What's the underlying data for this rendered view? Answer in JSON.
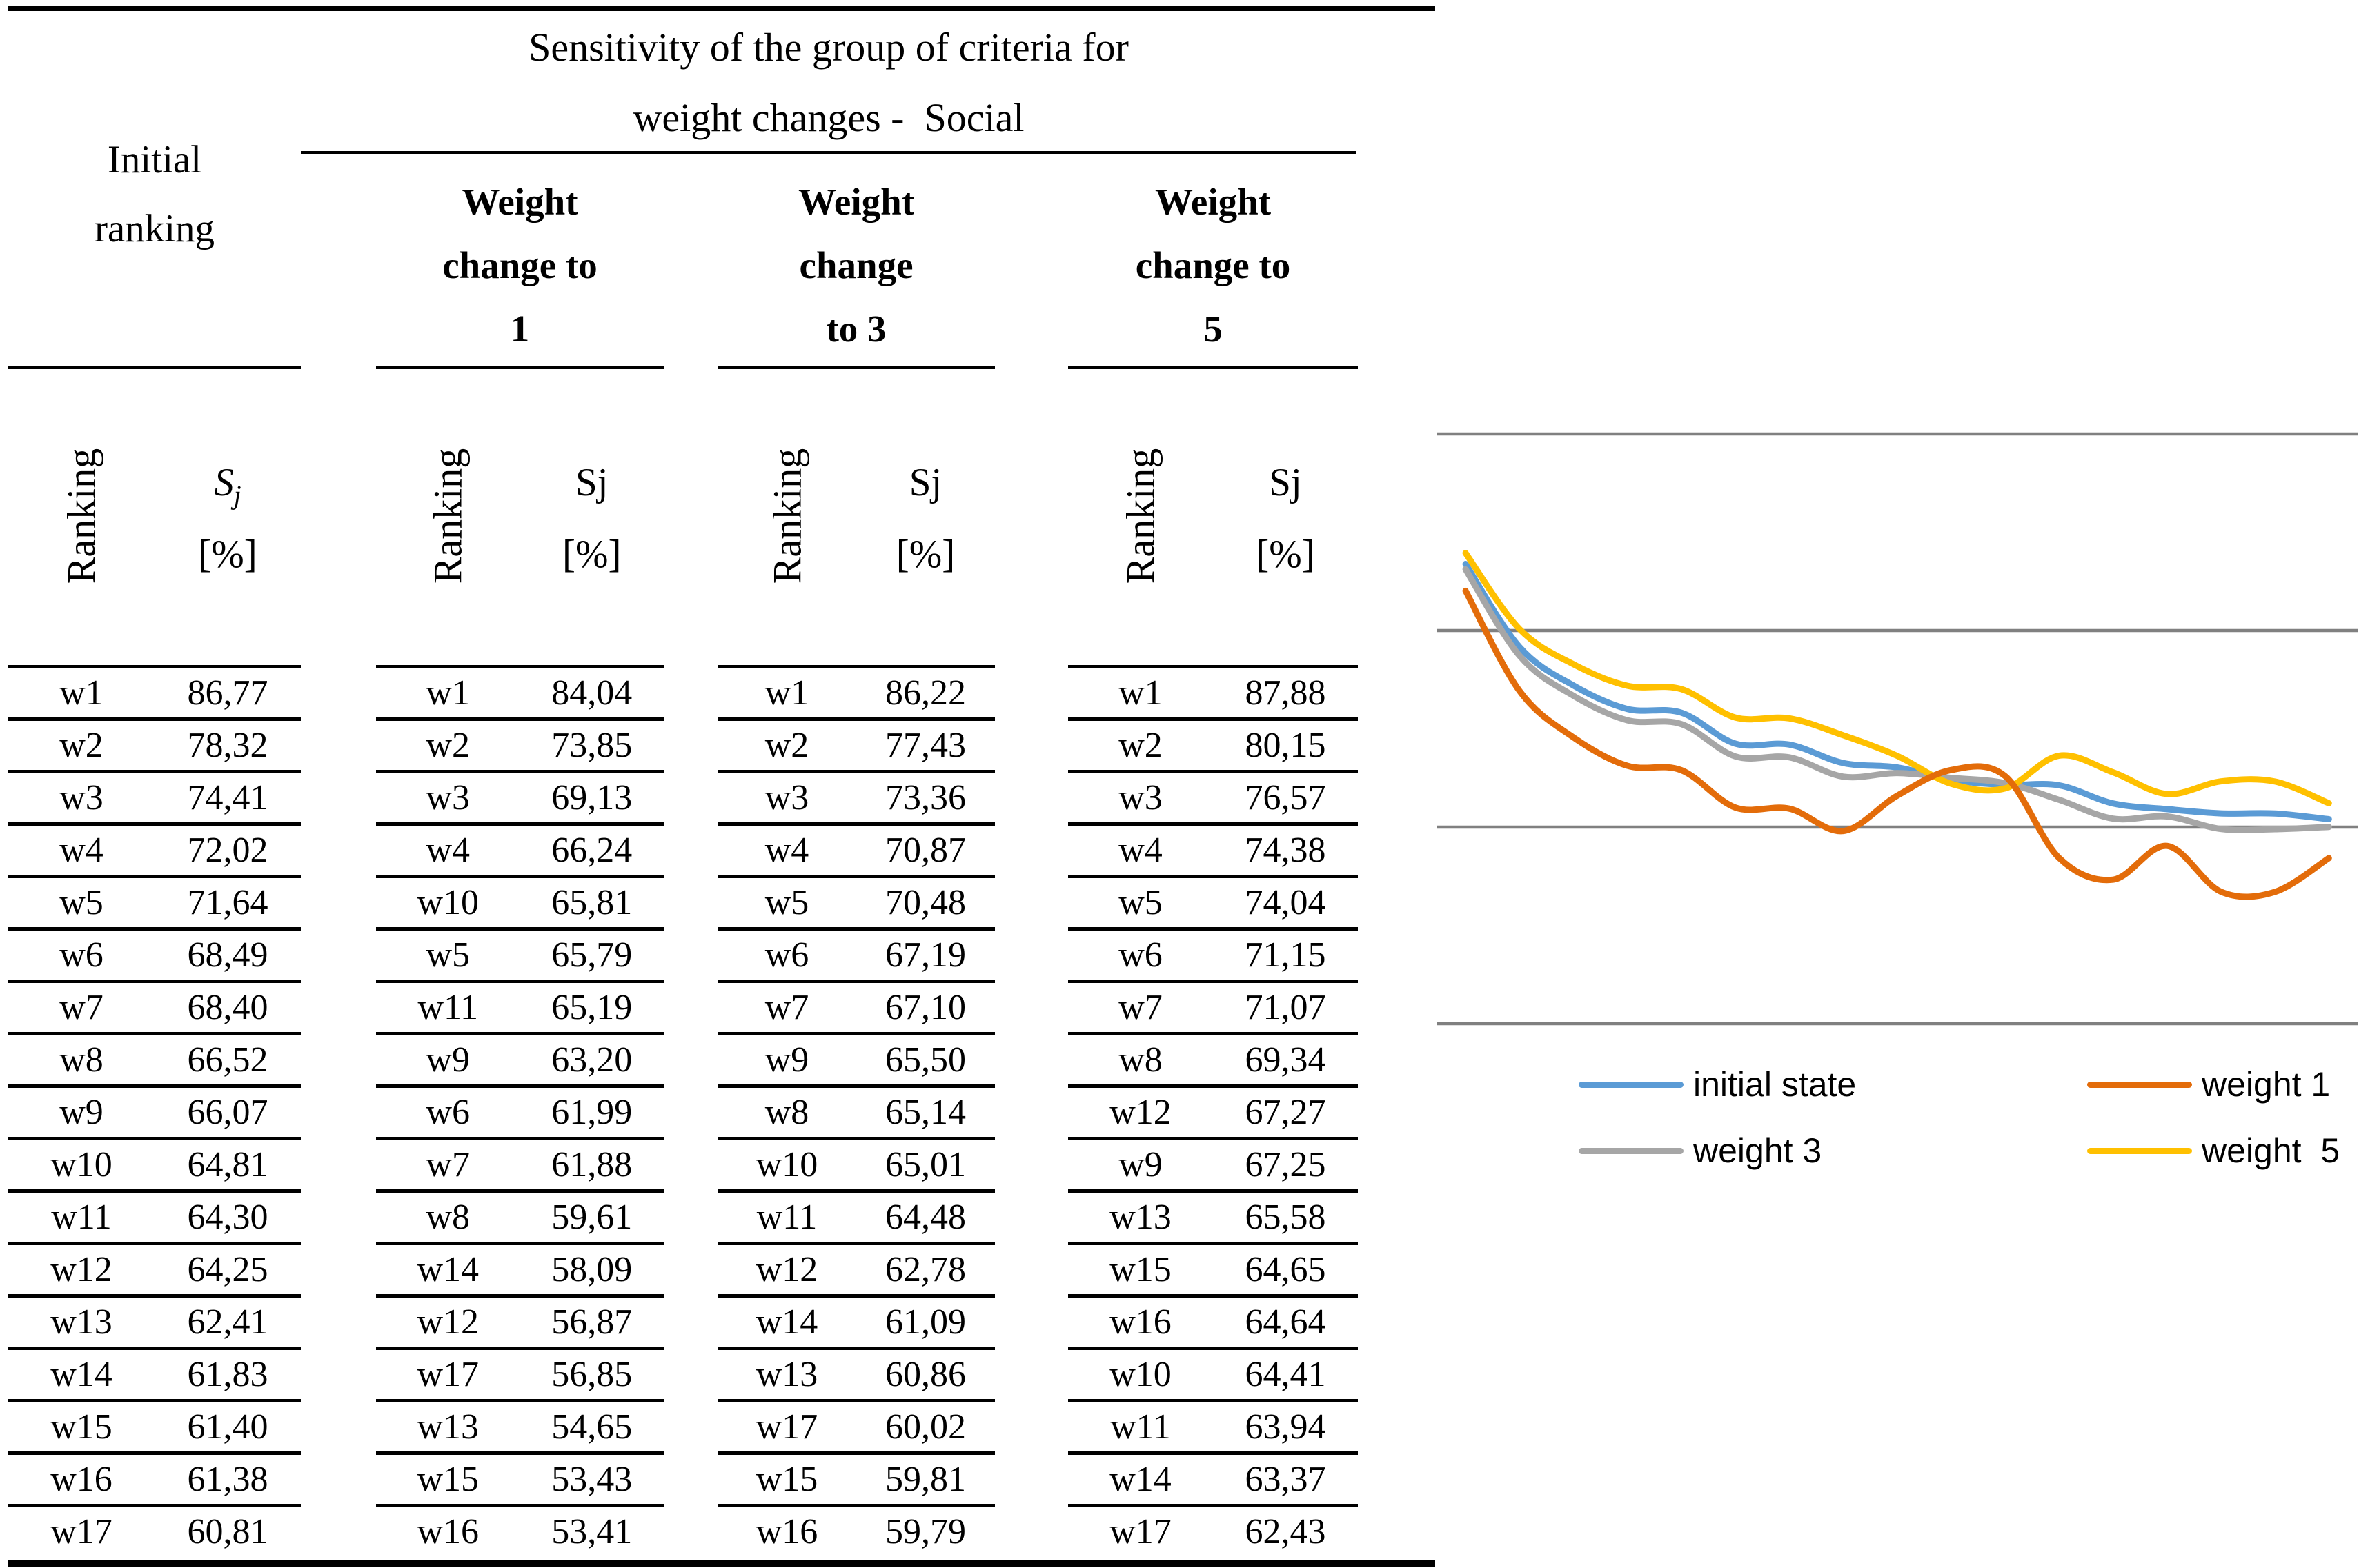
{
  "title": {
    "line1": "Sensitivity of the group of criteria for",
    "line2": "weight changes -  Social"
  },
  "initial_ranking_header": {
    "line1": "Initial",
    "line2": "ranking"
  },
  "col_headers": {
    "ranking": "Ranking",
    "sj_main": "S",
    "sj_sub": "j",
    "sj_plain": "Sj",
    "unit": "[%]"
  },
  "groups": [
    {
      "name": "initial-ranking",
      "header_lines": [],
      "rows": [
        [
          "w1",
          "86,77"
        ],
        [
          "w2",
          "78,32"
        ],
        [
          "w3",
          "74,41"
        ],
        [
          "w4",
          "72,02"
        ],
        [
          "w5",
          "71,64"
        ],
        [
          "w6",
          "68,49"
        ],
        [
          "w7",
          "68,40"
        ],
        [
          "w8",
          "66,52"
        ],
        [
          "w9",
          "66,07"
        ],
        [
          "w10",
          "64,81"
        ],
        [
          "w11",
          "64,30"
        ],
        [
          "w12",
          "64,25"
        ],
        [
          "w13",
          "62,41"
        ],
        [
          "w14",
          "61,83"
        ],
        [
          "w15",
          "61,40"
        ],
        [
          "w16",
          "61,38"
        ],
        [
          "w17",
          "60,81"
        ]
      ]
    },
    {
      "name": "weight-change-to-1",
      "header_lines": [
        "Weight",
        "change to",
        "1"
      ],
      "rows": [
        [
          "w1",
          "84,04"
        ],
        [
          "w2",
          "73,85"
        ],
        [
          "w3",
          "69,13"
        ],
        [
          "w4",
          "66,24"
        ],
        [
          "w10",
          "65,81"
        ],
        [
          "w5",
          "65,79"
        ],
        [
          "w11",
          "65,19"
        ],
        [
          "w9",
          "63,20"
        ],
        [
          "w6",
          "61,99"
        ],
        [
          "w7",
          "61,88"
        ],
        [
          "w8",
          "59,61"
        ],
        [
          "w14",
          "58,09"
        ],
        [
          "w12",
          "56,87"
        ],
        [
          "w17",
          "56,85"
        ],
        [
          "w13",
          "54,65"
        ],
        [
          "w15",
          "53,43"
        ],
        [
          "w16",
          "53,41"
        ]
      ]
    },
    {
      "name": "weight-change-to-3",
      "header_lines": [
        "Weight",
        "change",
        "to 3"
      ],
      "rows": [
        [
          "w1",
          "86,22"
        ],
        [
          "w2",
          "77,43"
        ],
        [
          "w3",
          "73,36"
        ],
        [
          "w4",
          "70,87"
        ],
        [
          "w5",
          "70,48"
        ],
        [
          "w6",
          "67,19"
        ],
        [
          "w7",
          "67,10"
        ],
        [
          "w9",
          "65,50"
        ],
        [
          "w8",
          "65,14"
        ],
        [
          "w10",
          "65,01"
        ],
        [
          "w11",
          "64,48"
        ],
        [
          "w12",
          "62,78"
        ],
        [
          "w14",
          "61,09"
        ],
        [
          "w13",
          "60,86"
        ],
        [
          "w17",
          "60,02"
        ],
        [
          "w15",
          "59,81"
        ],
        [
          "w16",
          "59,79"
        ]
      ]
    },
    {
      "name": "weight-change-to-5",
      "header_lines": [
        "Weight",
        "change to",
        "5"
      ],
      "rows": [
        [
          "w1",
          "87,88"
        ],
        [
          "w2",
          "80,15"
        ],
        [
          "w3",
          "76,57"
        ],
        [
          "w4",
          "74,38"
        ],
        [
          "w5",
          "74,04"
        ],
        [
          "w6",
          "71,15"
        ],
        [
          "w7",
          "71,07"
        ],
        [
          "w8",
          "69,34"
        ],
        [
          "w12",
          "67,27"
        ],
        [
          "w9",
          "67,25"
        ],
        [
          "w13",
          "65,58"
        ],
        [
          "w15",
          "64,65"
        ],
        [
          "w16",
          "64,64"
        ],
        [
          "w10",
          "64,41"
        ],
        [
          "w11",
          "63,94"
        ],
        [
          "w14",
          "63,37"
        ],
        [
          "w17",
          "62,43"
        ]
      ]
    }
  ],
  "chart_data": {
    "type": "line",
    "smooth": true,
    "title": "",
    "xlabel": "",
    "ylabel": "",
    "x_categories": [
      "w1",
      "w2",
      "w3",
      "w4",
      "w5",
      "w6",
      "w7",
      "w8",
      "w9",
      "w10",
      "w11",
      "w12",
      "w13",
      "w14",
      "w15",
      "w16",
      "w17"
    ],
    "ylim": [
      40,
      100
    ],
    "gridlines": [
      100,
      80,
      60,
      40
    ],
    "gridline_color": "#808080",
    "axis_tick_labels_visible": false,
    "legend_position": "bottom",
    "series": [
      {
        "name": "initial state",
        "color": "#5B9BD5",
        "values": [
          86.77,
          78.32,
          74.41,
          72.02,
          71.64,
          68.49,
          68.4,
          66.52,
          66.07,
          64.81,
          64.3,
          64.25,
          62.41,
          61.83,
          61.4,
          61.38,
          60.81
        ]
      },
      {
        "name": "weight 1",
        "color": "#E36C0A",
        "values": [
          84.04,
          73.85,
          69.13,
          66.24,
          65.79,
          61.99,
          61.88,
          59.61,
          63.2,
          65.81,
          65.19,
          56.87,
          54.65,
          58.09,
          53.43,
          53.41,
          56.85
        ]
      },
      {
        "name": "weight 3",
        "color": "#A6A6A6",
        "values": [
          86.22,
          77.43,
          73.36,
          70.87,
          70.48,
          67.19,
          67.1,
          65.14,
          65.5,
          65.01,
          64.48,
          62.78,
          60.86,
          61.09,
          59.81,
          59.79,
          60.02
        ]
      },
      {
        "name": "weight  5",
        "color": "#FFC000",
        "values": [
          87.88,
          80.15,
          76.57,
          74.38,
          74.04,
          71.15,
          71.07,
          69.34,
          67.25,
          64.41,
          63.94,
          67.27,
          65.58,
          63.37,
          64.65,
          64.64,
          62.43
        ]
      }
    ]
  },
  "legend": [
    {
      "label": "initial state",
      "color": "#5B9BD5"
    },
    {
      "label": "weight 1",
      "color": "#E36C0A"
    },
    {
      "label": "weight 3",
      "color": "#A6A6A6"
    },
    {
      "label": "weight  5",
      "color": "#FFC000"
    }
  ]
}
